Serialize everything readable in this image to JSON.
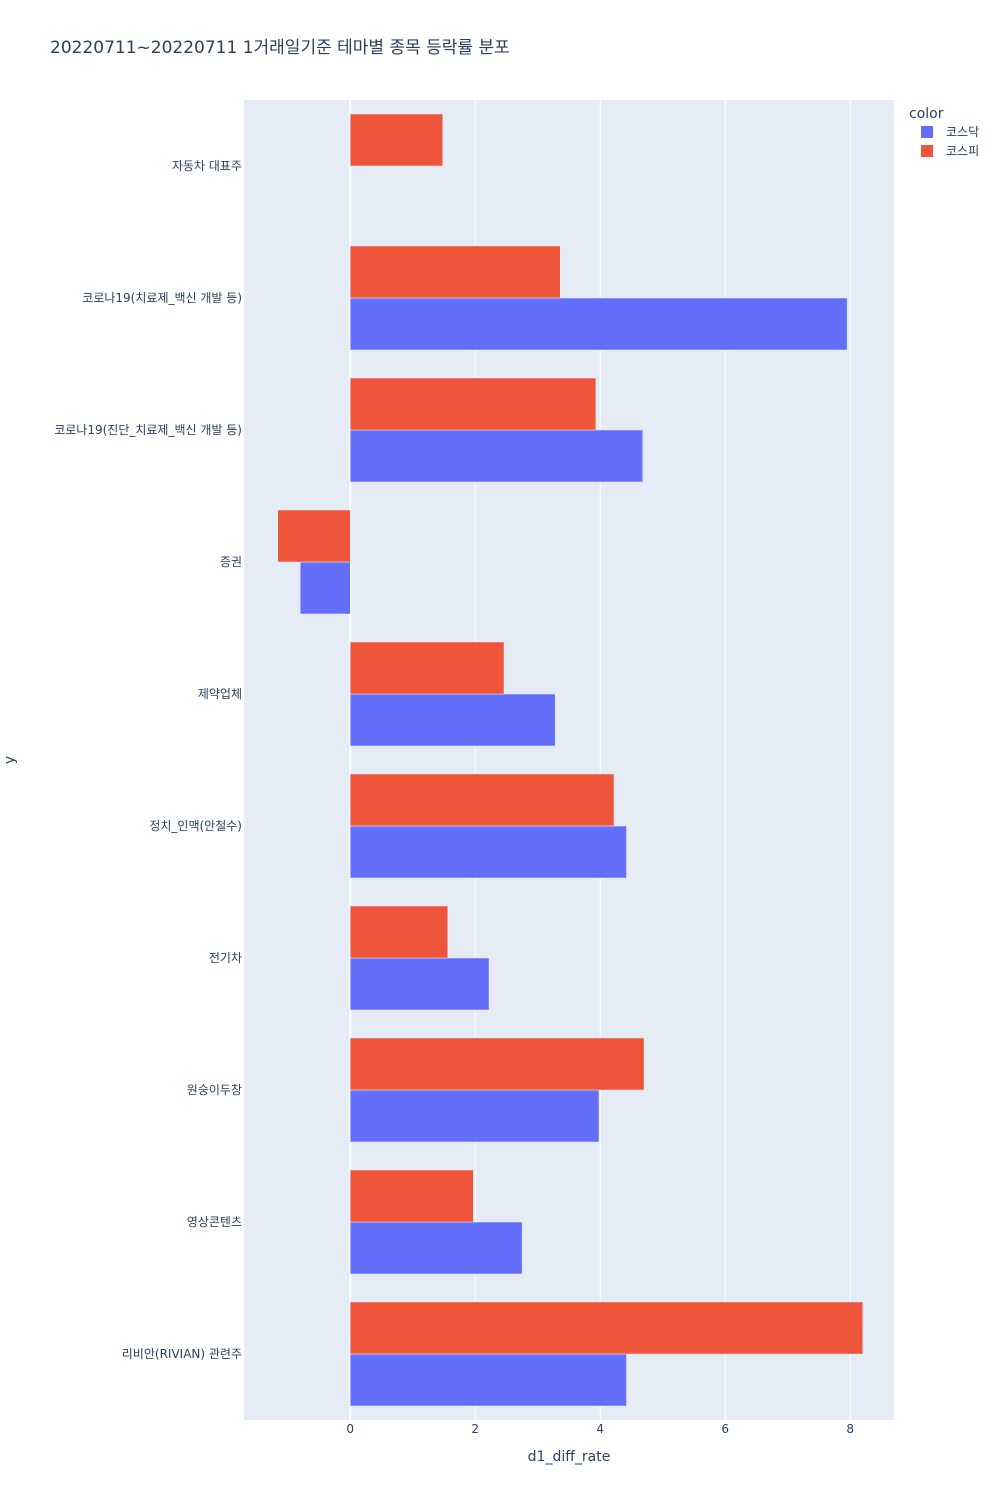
{
  "chart_data": {
    "type": "bar",
    "orientation": "horizontal",
    "barmode": "group",
    "title": "20220711~20220711 1거래일기준 테마별 종목 등락률 분포",
    "xlabel": "d1_diff_rate",
    "ylabel": "y",
    "xlim": [
      -1.7,
      8.7
    ],
    "xticks": [
      0,
      2,
      4,
      6,
      8
    ],
    "grid": true,
    "legend": {
      "title": "color",
      "position": "top-right"
    },
    "categories": [
      "자동차 대표주",
      "코로나19(치료제_백신 개발 등)",
      "코로나19(진단_치료제_백신 개발 등)",
      "증권",
      "제약업체",
      "정치_인맥(안철수)",
      "전기차",
      "원숭이두창",
      "영상콘텐츠",
      "리비안(RIVIAN) 관련주"
    ],
    "series": [
      {
        "name": "코스닥",
        "color": "#636efa",
        "values": [
          null,
          7.95,
          4.68,
          -0.8,
          3.28,
          4.42,
          2.22,
          3.98,
          2.75,
          4.42
        ]
      },
      {
        "name": "코스피",
        "color": "#ef553b",
        "values": [
          1.48,
          3.36,
          3.93,
          -1.16,
          2.46,
          4.22,
          1.56,
          4.7,
          1.97,
          8.2
        ]
      }
    ]
  }
}
